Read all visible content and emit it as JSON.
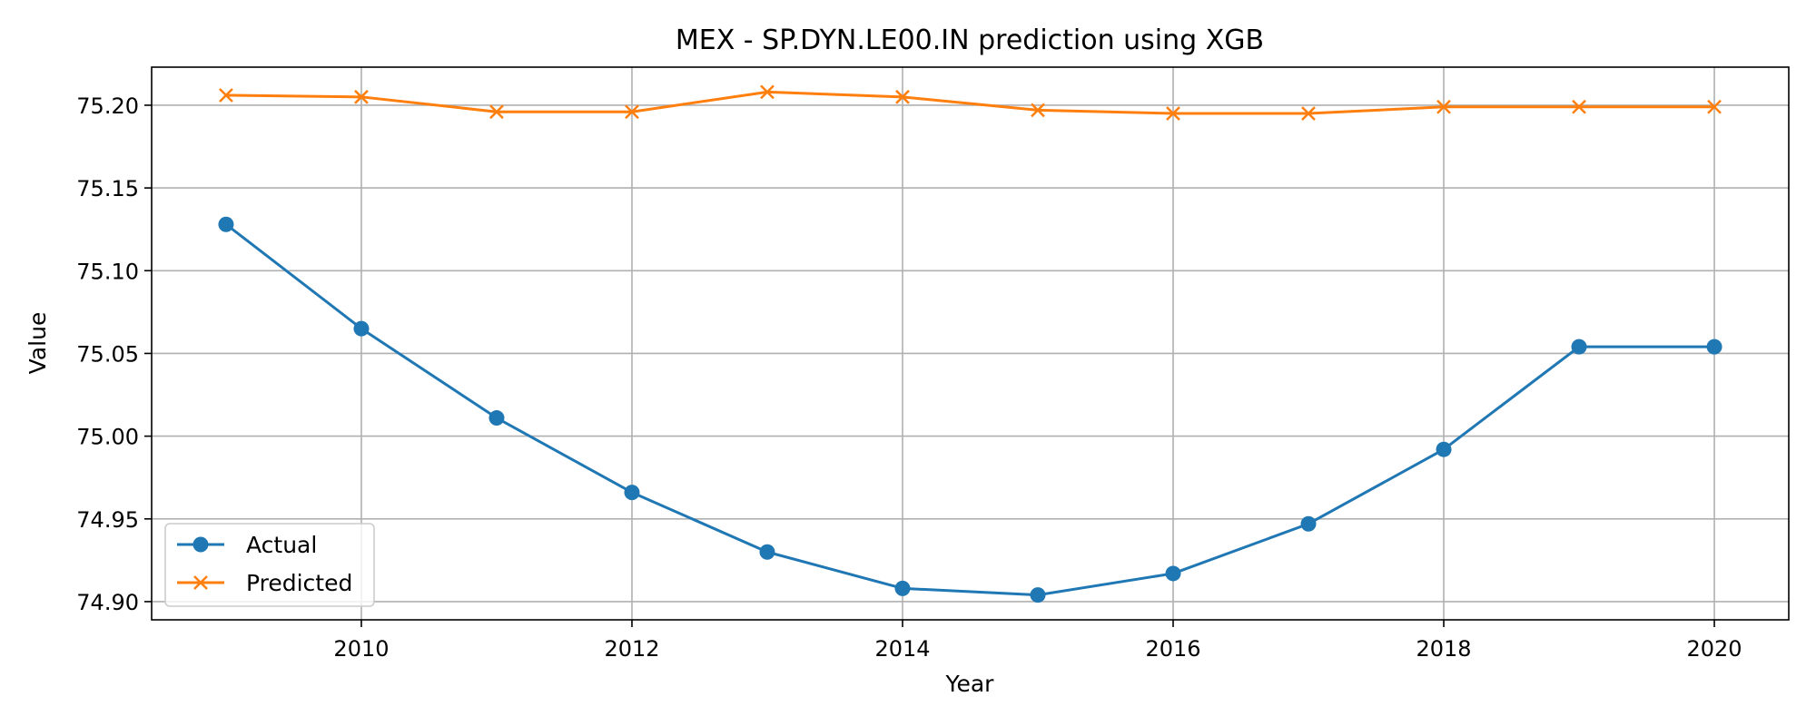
{
  "chart_data": {
    "type": "line",
    "title": "MEX - SP.DYN.LE00.IN prediction using XGB",
    "xlabel": "Year",
    "ylabel": "Value",
    "x": [
      2009,
      2010,
      2011,
      2012,
      2013,
      2014,
      2015,
      2016,
      2017,
      2018,
      2019,
      2020
    ],
    "xlim": [
      2008.45,
      2020.55
    ],
    "ylim": [
      74.889,
      75.223
    ],
    "xticks": [
      2010,
      2012,
      2014,
      2016,
      2018,
      2020
    ],
    "yticks": [
      74.9,
      74.95,
      75.0,
      75.05,
      75.1,
      75.15,
      75.2
    ],
    "ytick_labels": [
      "74.90",
      "74.95",
      "75.00",
      "75.05",
      "75.10",
      "75.15",
      "75.20"
    ],
    "grid": true,
    "legend_position": "lower-left",
    "series": [
      {
        "name": "Actual",
        "color": "#1f77b4",
        "marker": "circle",
        "values": [
          75.128,
          75.065,
          75.011,
          74.966,
          74.93,
          74.908,
          74.904,
          74.917,
          74.947,
          74.992,
          75.054,
          75.054
        ]
      },
      {
        "name": "Predicted",
        "color": "#ff7f0e",
        "marker": "x",
        "values": [
          75.206,
          75.205,
          75.196,
          75.196,
          75.208,
          75.205,
          75.197,
          75.195,
          75.195,
          75.199,
          75.199,
          75.199
        ]
      }
    ]
  }
}
